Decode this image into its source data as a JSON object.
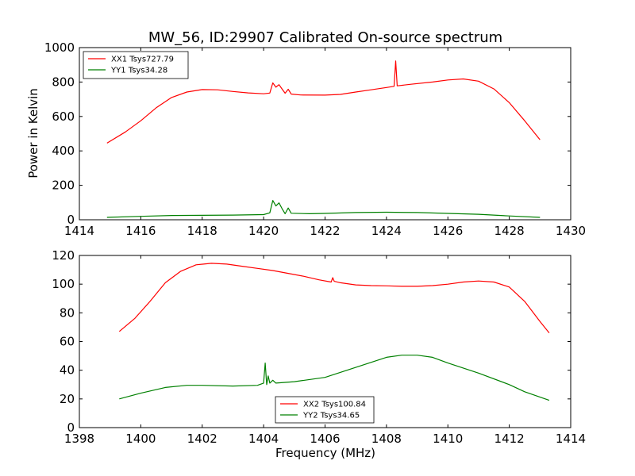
{
  "chart_data": [
    {
      "type": "line",
      "title": "MW_56, ID:29907 Calibrated On-source spectrum",
      "xlabel": "",
      "ylabel": "Power in Kelvin",
      "xlim": [
        1414,
        1430
      ],
      "ylim": [
        0,
        1000
      ],
      "xticks": [
        1414,
        1416,
        1418,
        1420,
        1422,
        1424,
        1426,
        1428,
        1430
      ],
      "yticks": [
        0,
        200,
        400,
        600,
        800,
        1000
      ],
      "legend_position": "upper-left",
      "grid": false,
      "series": [
        {
          "name": "XX1 Tsys727.79",
          "color": "#ff0000",
          "points": [
            [
              1414.9,
              445
            ],
            [
              1415.5,
              510
            ],
            [
              1416.0,
              575
            ],
            [
              1416.5,
              650
            ],
            [
              1417.0,
              710
            ],
            [
              1417.5,
              742
            ],
            [
              1418.0,
              756
            ],
            [
              1418.5,
              755
            ],
            [
              1419.0,
              745
            ],
            [
              1419.5,
              737
            ],
            [
              1420.0,
              732
            ],
            [
              1420.2,
              736
            ],
            [
              1420.3,
              795
            ],
            [
              1420.4,
              770
            ],
            [
              1420.5,
              785
            ],
            [
              1420.6,
              760
            ],
            [
              1420.7,
              735
            ],
            [
              1420.8,
              758
            ],
            [
              1420.9,
              730
            ],
            [
              1421.2,
              725
            ],
            [
              1422.0,
              724
            ],
            [
              1422.5,
              728
            ],
            [
              1423.0,
              742
            ],
            [
              1423.5,
              755
            ],
            [
              1424.0,
              768
            ],
            [
              1424.25,
              775
            ],
            [
              1424.3,
              922
            ],
            [
              1424.35,
              778
            ],
            [
              1424.8,
              787
            ],
            [
              1425.5,
              800
            ],
            [
              1426.0,
              812
            ],
            [
              1426.5,
              818
            ],
            [
              1427.0,
              805
            ],
            [
              1427.5,
              760
            ],
            [
              1428.0,
              680
            ],
            [
              1428.5,
              575
            ],
            [
              1429.0,
              465
            ]
          ]
        },
        {
          "name": "YY1 Tsys34.28",
          "color": "#008000",
          "points": [
            [
              1414.9,
              14
            ],
            [
              1416.0,
              20
            ],
            [
              1417.0,
              25
            ],
            [
              1418.0,
              26
            ],
            [
              1419.0,
              27
            ],
            [
              1420.0,
              30
            ],
            [
              1420.2,
              40
            ],
            [
              1420.3,
              112
            ],
            [
              1420.4,
              80
            ],
            [
              1420.5,
              98
            ],
            [
              1420.6,
              65
            ],
            [
              1420.7,
              35
            ],
            [
              1420.8,
              68
            ],
            [
              1420.9,
              38
            ],
            [
              1421.5,
              35
            ],
            [
              1422.0,
              37
            ],
            [
              1423.0,
              42
            ],
            [
              1424.0,
              44
            ],
            [
              1425.0,
              42
            ],
            [
              1426.0,
              37
            ],
            [
              1427.0,
              32
            ],
            [
              1428.0,
              22
            ],
            [
              1429.0,
              14
            ]
          ]
        }
      ]
    },
    {
      "type": "line",
      "title": "",
      "xlabel": "Frequency (MHz)",
      "ylabel": "",
      "xlim": [
        1398,
        1414
      ],
      "ylim": [
        0,
        120
      ],
      "xticks": [
        1398,
        1400,
        1402,
        1404,
        1406,
        1408,
        1410,
        1412,
        1414
      ],
      "yticks": [
        0,
        20,
        40,
        60,
        80,
        100,
        120
      ],
      "legend_position": "lower-center",
      "grid": false,
      "series": [
        {
          "name": "XX2 Tsys100.84",
          "color": "#ff0000",
          "points": [
            [
              1399.3,
              67
            ],
            [
              1399.8,
              76
            ],
            [
              1400.3,
              88
            ],
            [
              1400.8,
              101
            ],
            [
              1401.3,
              109
            ],
            [
              1401.8,
              113.5
            ],
            [
              1402.3,
              114.5
            ],
            [
              1402.8,
              114
            ],
            [
              1403.3,
              112.5
            ],
            [
              1403.8,
              111
            ],
            [
              1404.3,
              109.5
            ],
            [
              1404.8,
              107.5
            ],
            [
              1405.3,
              105.5
            ],
            [
              1405.8,
              103
            ],
            [
              1406.2,
              101.5
            ],
            [
              1406.25,
              104.5
            ],
            [
              1406.3,
              102
            ],
            [
              1406.5,
              101
            ],
            [
              1407.0,
              99.5
            ],
            [
              1407.5,
              99
            ],
            [
              1408.0,
              98.8
            ],
            [
              1408.5,
              98.5
            ],
            [
              1409.0,
              98.5
            ],
            [
              1409.5,
              99
            ],
            [
              1410.0,
              100
            ],
            [
              1410.5,
              101.5
            ],
            [
              1411.0,
              102.2
            ],
            [
              1411.5,
              101.5
            ],
            [
              1412.0,
              98
            ],
            [
              1412.5,
              88
            ],
            [
              1413.0,
              74
            ],
            [
              1413.3,
              66
            ]
          ]
        },
        {
          "name": "YY2 Tsys34.65",
          "color": "#008000",
          "points": [
            [
              1399.3,
              20
            ],
            [
              1400.0,
              24
            ],
            [
              1400.8,
              28
            ],
            [
              1401.5,
              29.5
            ],
            [
              1402.0,
              29.5
            ],
            [
              1403.0,
              29
            ],
            [
              1403.8,
              29.5
            ],
            [
              1404.0,
              31
            ],
            [
              1404.05,
              45
            ],
            [
              1404.1,
              30
            ],
            [
              1404.15,
              36
            ],
            [
              1404.2,
              31
            ],
            [
              1404.3,
              33
            ],
            [
              1404.4,
              31
            ],
            [
              1405.0,
              32
            ],
            [
              1406.0,
              35
            ],
            [
              1407.0,
              42
            ],
            [
              1408.0,
              49
            ],
            [
              1408.5,
              50.5
            ],
            [
              1409.0,
              50.5
            ],
            [
              1409.5,
              49
            ],
            [
              1410.0,
              45
            ],
            [
              1411.0,
              38
            ],
            [
              1412.0,
              30
            ],
            [
              1412.5,
              25
            ],
            [
              1413.3,
              19
            ]
          ]
        }
      ]
    }
  ]
}
